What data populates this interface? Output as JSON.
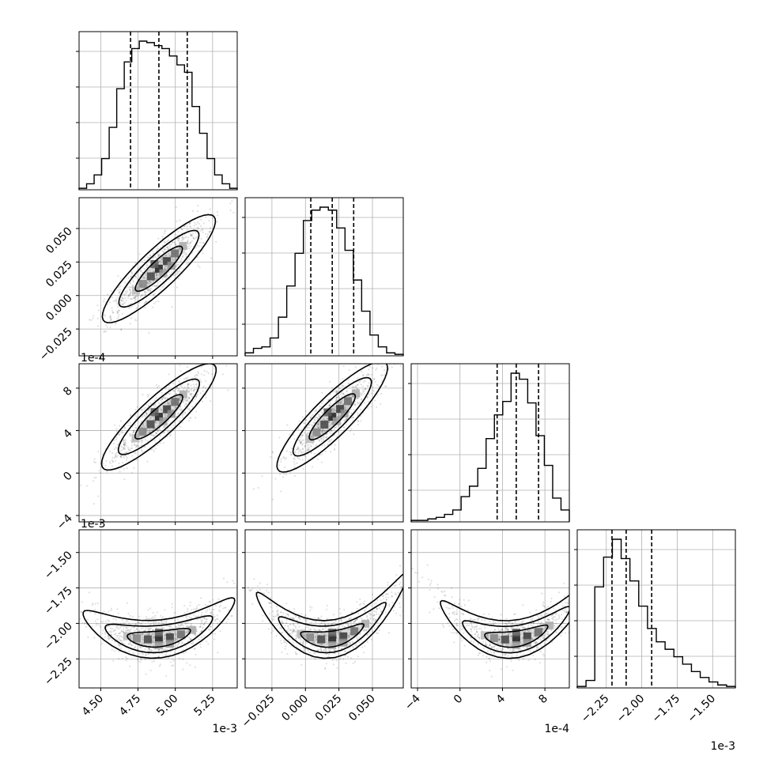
{
  "chart_data": {
    "type": "corner",
    "parameters": [
      {
        "id": "p0",
        "range": [
          4.355,
          5.415
        ],
        "ticks": [
          4.5,
          4.75,
          5.0,
          5.25
        ],
        "tick_labels": [
          "4.50",
          "4.75",
          "5.00",
          "5.25"
        ],
        "offset_label": "1e-3",
        "quantiles": [
          4.7,
          4.89,
          5.08
        ]
      },
      {
        "id": "p1",
        "range": [
          -0.045,
          0.073
        ],
        "ticks": [
          -0.025,
          0.0,
          0.025,
          0.05
        ],
        "tick_labels": [
          "−0.025",
          "0.000",
          "0.025",
          "0.050"
        ],
        "offset_label": "",
        "quantiles": [
          0.004,
          0.02,
          0.036
        ]
      },
      {
        "id": "p2",
        "range": [
          -4.6,
          10.3
        ],
        "ticks": [
          -4,
          0,
          4,
          8
        ],
        "tick_labels": [
          "−4",
          "0",
          "4",
          "8"
        ],
        "offset_label": "1e-4",
        "quantiles": [
          3.5,
          5.3,
          7.4
        ]
      },
      {
        "id": "p3",
        "range": [
          -2.455,
          -1.34
        ],
        "ticks": [
          -2.25,
          -2.0,
          -1.75,
          -1.5
        ],
        "tick_labels": [
          "−2.25",
          "−2.00",
          "−1.75",
          "−1.50"
        ],
        "offset_label": "1e-3",
        "quantiles": [
          -2.21,
          -2.11,
          -1.93
        ]
      }
    ],
    "histograms": [
      [
        1,
        4,
        10,
        21,
        42,
        68,
        86,
        95,
        100,
        99,
        97,
        95,
        90,
        84,
        79,
        56,
        38,
        21,
        10,
        4,
        1
      ],
      [
        2,
        5,
        6,
        12,
        26,
        47,
        69,
        91,
        98,
        100,
        98,
        86,
        71,
        51,
        30,
        14,
        6,
        2,
        1
      ],
      [
        1,
        1,
        2,
        3,
        5,
        8,
        17,
        24,
        36,
        56,
        72,
        81,
        100,
        96,
        80,
        58,
        38,
        16,
        8
      ],
      [
        1,
        5,
        68,
        88,
        100,
        87,
        72,
        55,
        40,
        31,
        26,
        21,
        16,
        11,
        7,
        4,
        2,
        1
      ]
    ],
    "correlations": {
      "1_0": {
        "slope": 0.95,
        "curve": 0
      },
      "2_0": {
        "slope": 0.92,
        "curve": 0
      },
      "2_1": {
        "slope": 1.0,
        "curve": 0
      },
      "3_0": {
        "slope": 0.35,
        "curve": 1.1
      },
      "3_1": {
        "slope": 0.55,
        "curve": 1.9
      },
      "3_2": {
        "slope": 0.55,
        "curve": 1.6
      }
    },
    "grid": true,
    "quantile_style": "dashed"
  }
}
